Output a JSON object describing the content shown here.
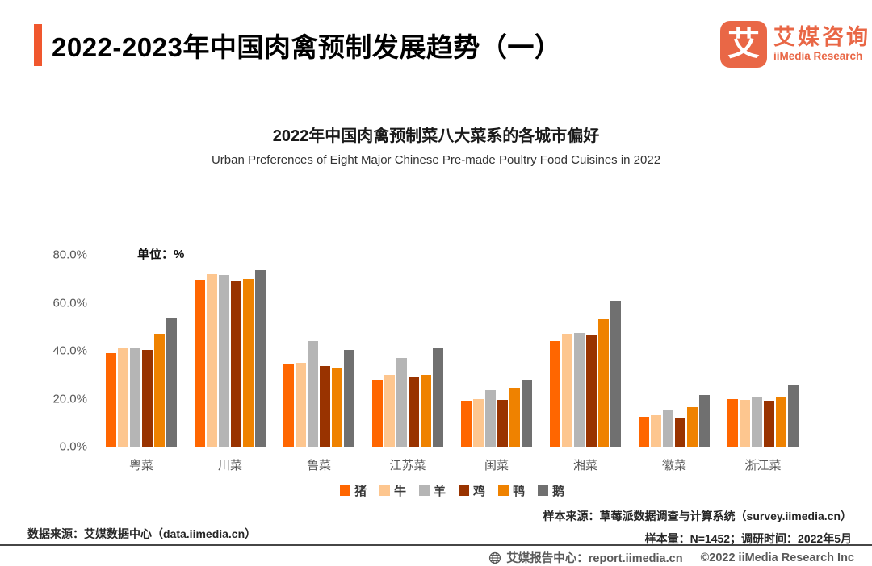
{
  "header": {
    "title": "2022-2023年中国肉禽预制发展趋势（一）",
    "logo": {
      "glyph": "艾",
      "name_cn": "艾媒咨询",
      "name_en": "iiMedia Research"
    },
    "accent_color": "#F0572E",
    "brand_color": "#E96746"
  },
  "chart": {
    "title_cn": "2022年中国肉禽预制菜八大菜系的各城市偏好",
    "title_en": "Urban Preferences of Eight Major Chinese Pre-made Poultry Food Cuisines in 2022",
    "unit_label": "单位：%"
  },
  "chart_data": {
    "type": "bar",
    "categories": [
      "粤菜",
      "川菜",
      "鲁菜",
      "江苏菜",
      "闽菜",
      "湘菜",
      "徽菜",
      "浙江菜"
    ],
    "series": [
      {
        "name": "猪",
        "color": "#FF6600",
        "values": [
          39,
          69.5,
          34.5,
          28,
          19,
          44,
          12.5,
          20
        ]
      },
      {
        "name": "牛",
        "color": "#FDC68F",
        "values": [
          41,
          72,
          35,
          30,
          20,
          47,
          13,
          19.5
        ]
      },
      {
        "name": "羊",
        "color": "#B5B5B5",
        "values": [
          41,
          71.5,
          44,
          37,
          23.5,
          47.5,
          15.5,
          21
        ]
      },
      {
        "name": "鸡",
        "color": "#993300",
        "values": [
          40.5,
          69,
          33.5,
          29,
          19.5,
          46.5,
          12,
          19
        ]
      },
      {
        "name": "鸭",
        "color": "#EF8200",
        "values": [
          47,
          70,
          32.5,
          30,
          24.5,
          53,
          16.5,
          20.5
        ]
      },
      {
        "name": "鹅",
        "color": "#707070",
        "values": [
          53.5,
          73.5,
          40.5,
          41.5,
          28,
          61,
          21.5,
          26
        ]
      }
    ],
    "yticks": [
      {
        "label": "80.0%",
        "value": 80
      },
      {
        "label": "60.0%",
        "value": 60
      },
      {
        "label": "40.0%",
        "value": 40
      },
      {
        "label": "20.0%",
        "value": 20
      },
      {
        "label": "0.0%",
        "value": 0
      }
    ],
    "ylim": [
      0,
      80
    ],
    "unit": "%",
    "grid": false,
    "legend_position": "bottom"
  },
  "notes": {
    "sample_source": "样本来源：草莓派数据调查与计算系统（survey.iimedia.cn）",
    "sample_size": "样本量：N=1452；调研时间：2022年5月",
    "data_source": "数据来源：艾媒数据中心（data.iimedia.cn）"
  },
  "footer": {
    "report_center": "艾媒报告中心：report.iimedia.cn",
    "copyright": "©2022  iiMedia Research  Inc"
  }
}
